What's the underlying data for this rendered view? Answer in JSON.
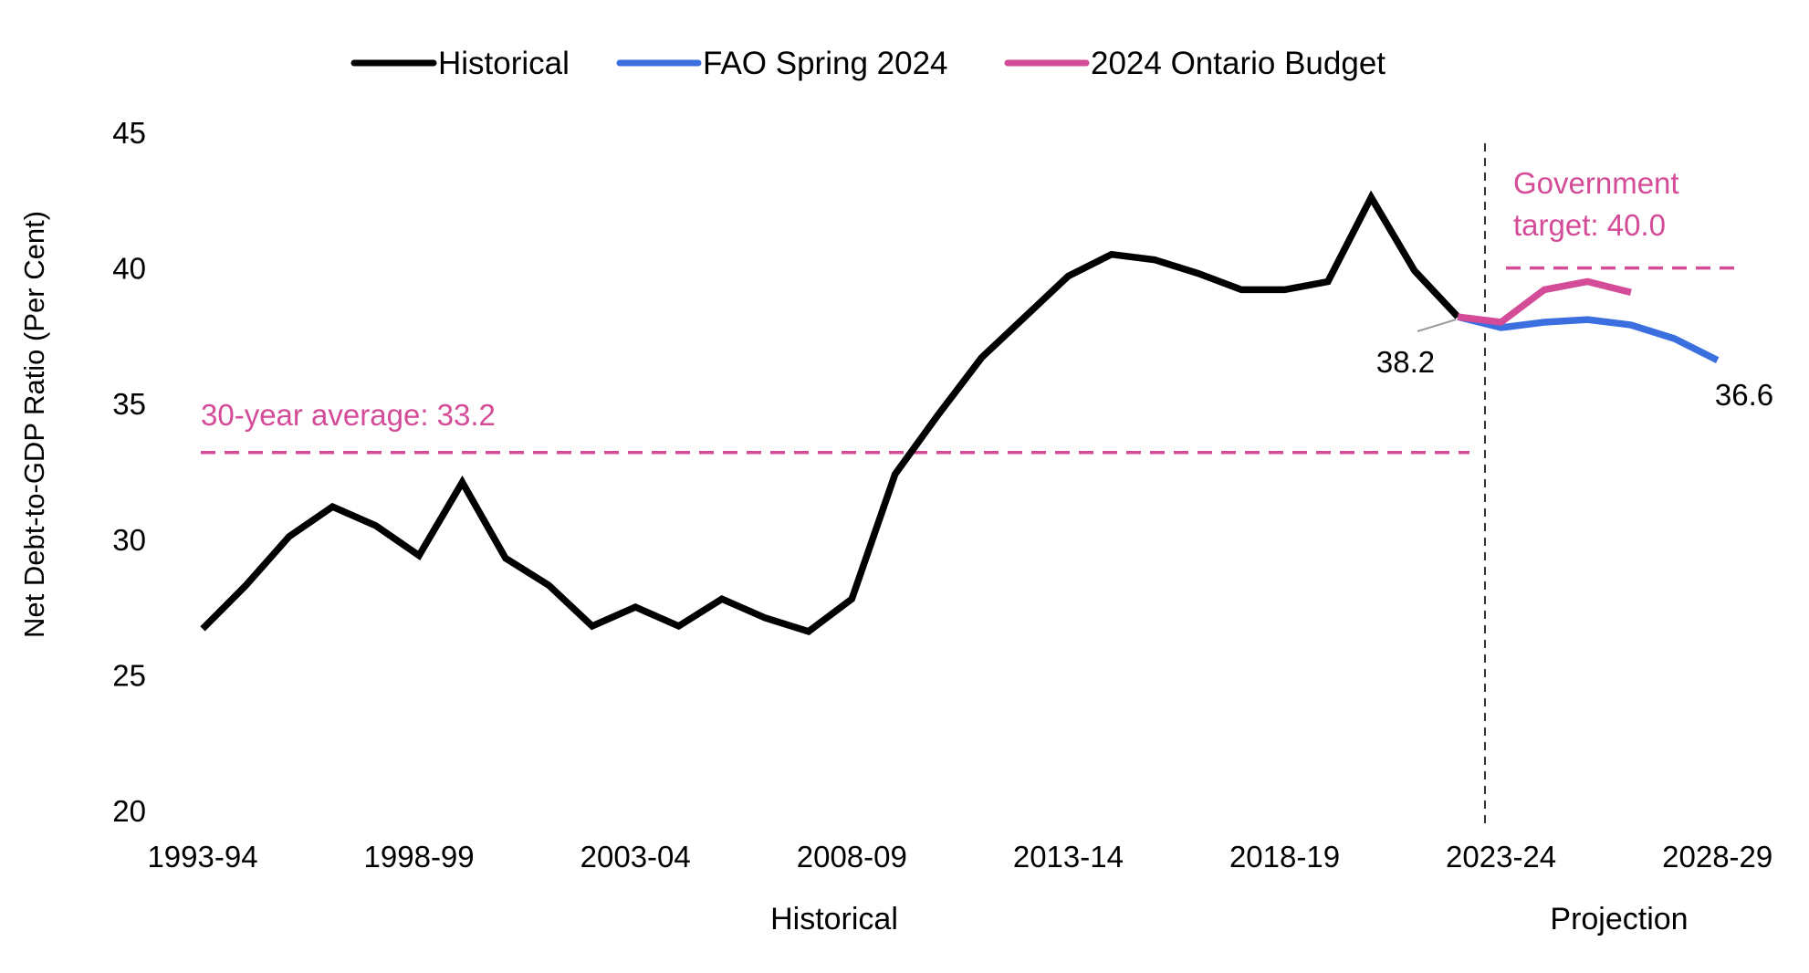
{
  "chart_data": {
    "type": "line",
    "ylabel": "Net Debt-to-GDP Ratio (Per Cent)",
    "ylim": [
      20,
      45
    ],
    "yticks": [
      20,
      25,
      30,
      35,
      40,
      45
    ],
    "x_tick_labels": [
      "1993-94",
      "1998-99",
      "2003-04",
      "2008-09",
      "2013-14",
      "2018-19",
      "2023-24",
      "2028-29"
    ],
    "categories": [
      "1993-94",
      "1994-95",
      "1995-96",
      "1996-97",
      "1997-98",
      "1998-99",
      "1999-00",
      "2000-01",
      "2001-02",
      "2002-03",
      "2003-04",
      "2004-05",
      "2005-06",
      "2006-07",
      "2007-08",
      "2008-09",
      "2009-10",
      "2010-11",
      "2011-12",
      "2012-13",
      "2013-14",
      "2014-15",
      "2015-16",
      "2016-17",
      "2017-18",
      "2018-19",
      "2019-20",
      "2020-21",
      "2021-22",
      "2022-23",
      "2023-24",
      "2024-25",
      "2025-26",
      "2026-27",
      "2027-28",
      "2028-29"
    ],
    "series": [
      {
        "name": "Historical",
        "color": "#000000",
        "x": [
          "1993-94",
          "1994-95",
          "1995-96",
          "1996-97",
          "1997-98",
          "1998-99",
          "1999-00",
          "2000-01",
          "2001-02",
          "2002-03",
          "2003-04",
          "2004-05",
          "2005-06",
          "2006-07",
          "2007-08",
          "2008-09",
          "2009-10",
          "2010-11",
          "2011-12",
          "2012-13",
          "2013-14",
          "2014-15",
          "2015-16",
          "2016-17",
          "2017-18",
          "2018-19",
          "2019-20",
          "2020-21",
          "2021-22",
          "2022-23"
        ],
        "values": [
          26.7,
          28.3,
          30.1,
          31.2,
          30.5,
          29.4,
          32.1,
          29.3,
          28.3,
          26.8,
          27.5,
          26.8,
          27.8,
          27.1,
          26.6,
          27.8,
          32.4,
          34.6,
          36.7,
          38.2,
          39.7,
          40.5,
          40.3,
          39.8,
          39.2,
          39.2,
          39.5,
          42.6,
          39.9,
          38.2
        ]
      },
      {
        "name": "FAO Spring 2024",
        "color": "#3B6FE0",
        "x": [
          "2022-23",
          "2023-24",
          "2024-25",
          "2025-26",
          "2026-27",
          "2027-28",
          "2028-29"
        ],
        "values": [
          38.2,
          37.8,
          38.0,
          38.1,
          37.9,
          37.4,
          36.6
        ]
      },
      {
        "name": "2024 Ontario Budget",
        "color": "#D44B97",
        "x": [
          "2022-23",
          "2023-24",
          "2024-25",
          "2025-26",
          "2026-27"
        ],
        "values": [
          38.2,
          38.0,
          39.2,
          39.5,
          39.1
        ]
      }
    ],
    "reference_lines": [
      {
        "label": "30-year average: 33.2",
        "value": 33.2,
        "from": "1993-94",
        "to": "2022-23",
        "color": "#D44B97"
      },
      {
        "label_lines": [
          "Government",
          "target: 40.0"
        ],
        "value": 40.0,
        "from": "2023-24",
        "to": "2028-29",
        "color": "#D44B97"
      }
    ],
    "data_labels": [
      {
        "text": "38.2",
        "x": "2022-23",
        "value": 38.2
      },
      {
        "text": "36.6",
        "x": "2028-29",
        "value": 36.6
      }
    ],
    "divider": {
      "between": [
        "2022-23",
        "2023-24"
      ]
    },
    "sections": [
      "Historical",
      "Projection"
    ],
    "legend_position": "top",
    "grid": false
  }
}
